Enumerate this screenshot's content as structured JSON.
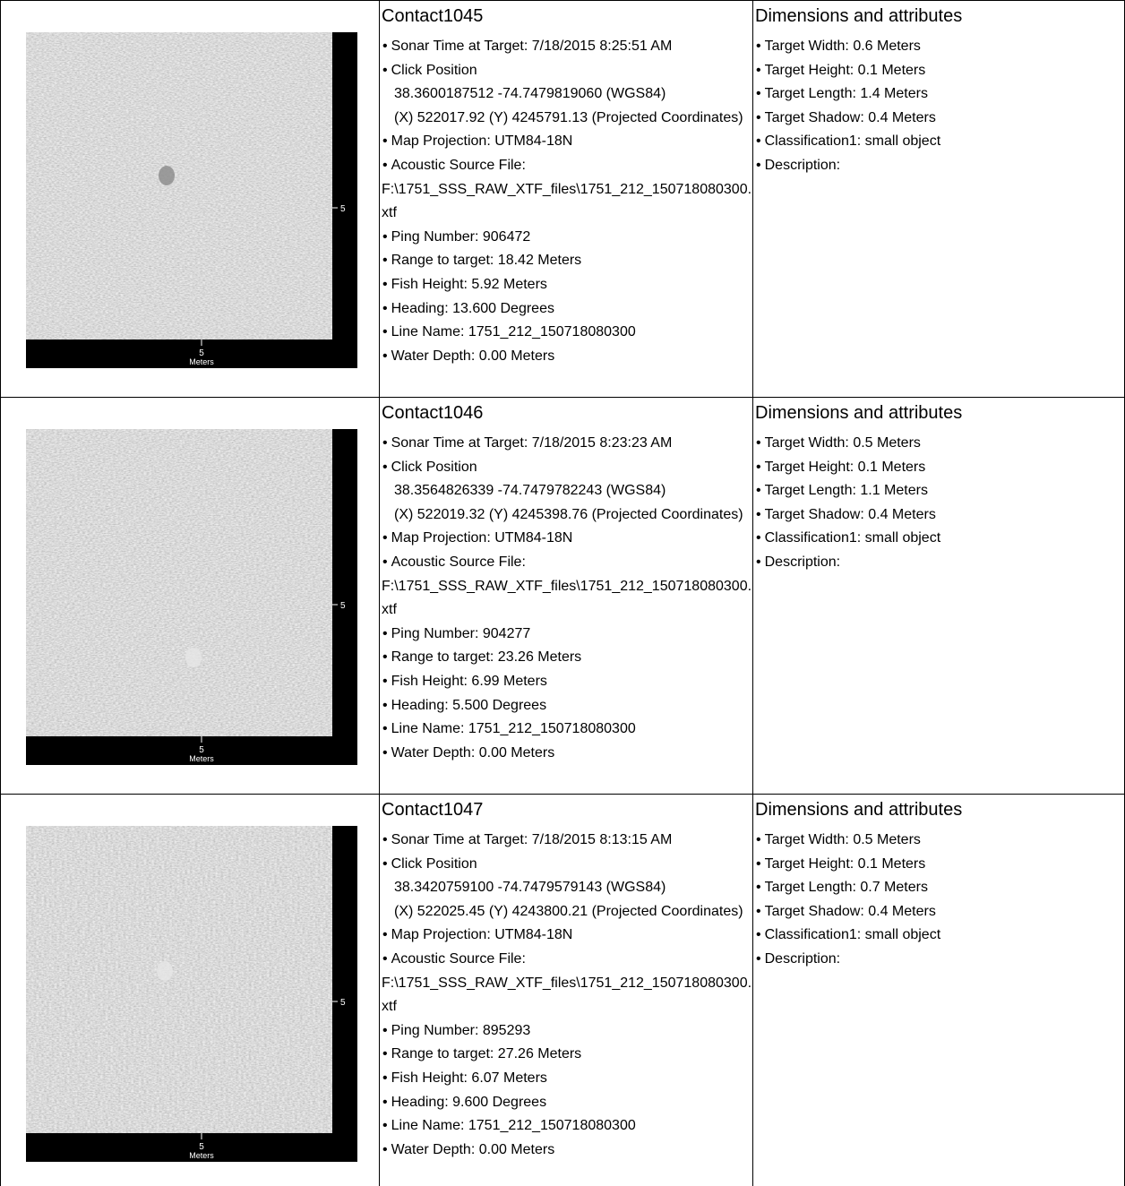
{
  "rows": [
    {
      "image": {
        "scale_right": "5",
        "scale_bottom": "5",
        "unit": "Meters"
      },
      "contact": {
        "title": "Contact1045",
        "items": [
          {
            "text": "Sonar Time at Target: 7/18/2015 8:25:51 AM"
          },
          {
            "text": "Click Position",
            "indented_lines": [
              "38.3600187512 -74.7479819060 (WGS84)",
              "(X) 522017.92 (Y) 4245791.13 (Projected Coordinates)"
            ]
          },
          {
            "text": "Map Projection: UTM84-18N"
          },
          {
            "text": "Acoustic Source File:",
            "lines": [
              "F:\\1751_SSS_RAW_XTF_files\\1751_212_150718080300.xtf"
            ]
          },
          {
            "text": "Ping Number: 906472"
          },
          {
            "text": "Range to target: 18.42 Meters"
          },
          {
            "text": "Fish Height: 5.92 Meters"
          },
          {
            "text": "Heading: 13.600 Degrees"
          },
          {
            "text": "Line Name: 1751_212_150718080300"
          },
          {
            "text": "Water Depth: 0.00 Meters"
          }
        ]
      },
      "dimensions": {
        "title": "Dimensions and attributes",
        "items": [
          "Target Width: 0.6 Meters",
          "Target Height: 0.1 Meters",
          "Target Length: 1.4 Meters",
          "Target Shadow: 0.4 Meters",
          "Classification1: small object",
          "Description:"
        ]
      }
    },
    {
      "image": {
        "scale_right": "5",
        "scale_bottom": "5",
        "unit": "Meters"
      },
      "contact": {
        "title": "Contact1046",
        "items": [
          {
            "text": "Sonar Time at Target: 7/18/2015 8:23:23 AM"
          },
          {
            "text": "Click Position",
            "indented_lines": [
              "38.3564826339 -74.7479782243 (WGS84)",
              "(X) 522019.32 (Y) 4245398.76 (Projected Coordinates)"
            ]
          },
          {
            "text": "Map Projection: UTM84-18N"
          },
          {
            "text": "Acoustic Source File:",
            "lines": [
              "F:\\1751_SSS_RAW_XTF_files\\1751_212_150718080300.xtf"
            ]
          },
          {
            "text": "Ping Number: 904277"
          },
          {
            "text": "Range to target: 23.26 Meters"
          },
          {
            "text": "Fish Height: 6.99 Meters"
          },
          {
            "text": "Heading: 5.500 Degrees"
          },
          {
            "text": "Line Name: 1751_212_150718080300"
          },
          {
            "text": "Water Depth: 0.00 Meters"
          }
        ]
      },
      "dimensions": {
        "title": "Dimensions and attributes",
        "items": [
          "Target Width: 0.5 Meters",
          "Target Height: 0.1 Meters",
          "Target Length: 1.1 Meters",
          "Target Shadow: 0.4 Meters",
          "Classification1: small object",
          "Description:"
        ]
      }
    },
    {
      "image": {
        "scale_right": "5",
        "scale_bottom": "5",
        "unit": "Meters"
      },
      "contact": {
        "title": "Contact1047",
        "items": [
          {
            "text": "Sonar Time at Target: 7/18/2015 8:13:15 AM"
          },
          {
            "text": "Click Position",
            "indented_lines": [
              "38.3420759100 -74.7479579143 (WGS84)",
              "(X) 522025.45 (Y) 4243800.21 (Projected Coordinates)"
            ]
          },
          {
            "text": "Map Projection: UTM84-18N"
          },
          {
            "text": "Acoustic Source File:",
            "lines": [
              "F:\\1751_SSS_RAW_XTF_files\\1751_212_150718080300.xtf"
            ]
          },
          {
            "text": "Ping Number: 895293"
          },
          {
            "text": "Range to target: 27.26 Meters"
          },
          {
            "text": "Fish Height: 6.07 Meters"
          },
          {
            "text": "Heading: 9.600 Degrees"
          },
          {
            "text": "Line Name: 1751_212_150718080300"
          },
          {
            "text": "Water Depth: 0.00 Meters"
          }
        ]
      },
      "dimensions": {
        "title": "Dimensions and attributes",
        "items": [
          "Target Width: 0.5 Meters",
          "Target Height: 0.1 Meters",
          "Target Length: 0.7 Meters",
          "Target Shadow: 0.4 Meters",
          "Classification1: small object",
          "Description:"
        ]
      }
    }
  ]
}
